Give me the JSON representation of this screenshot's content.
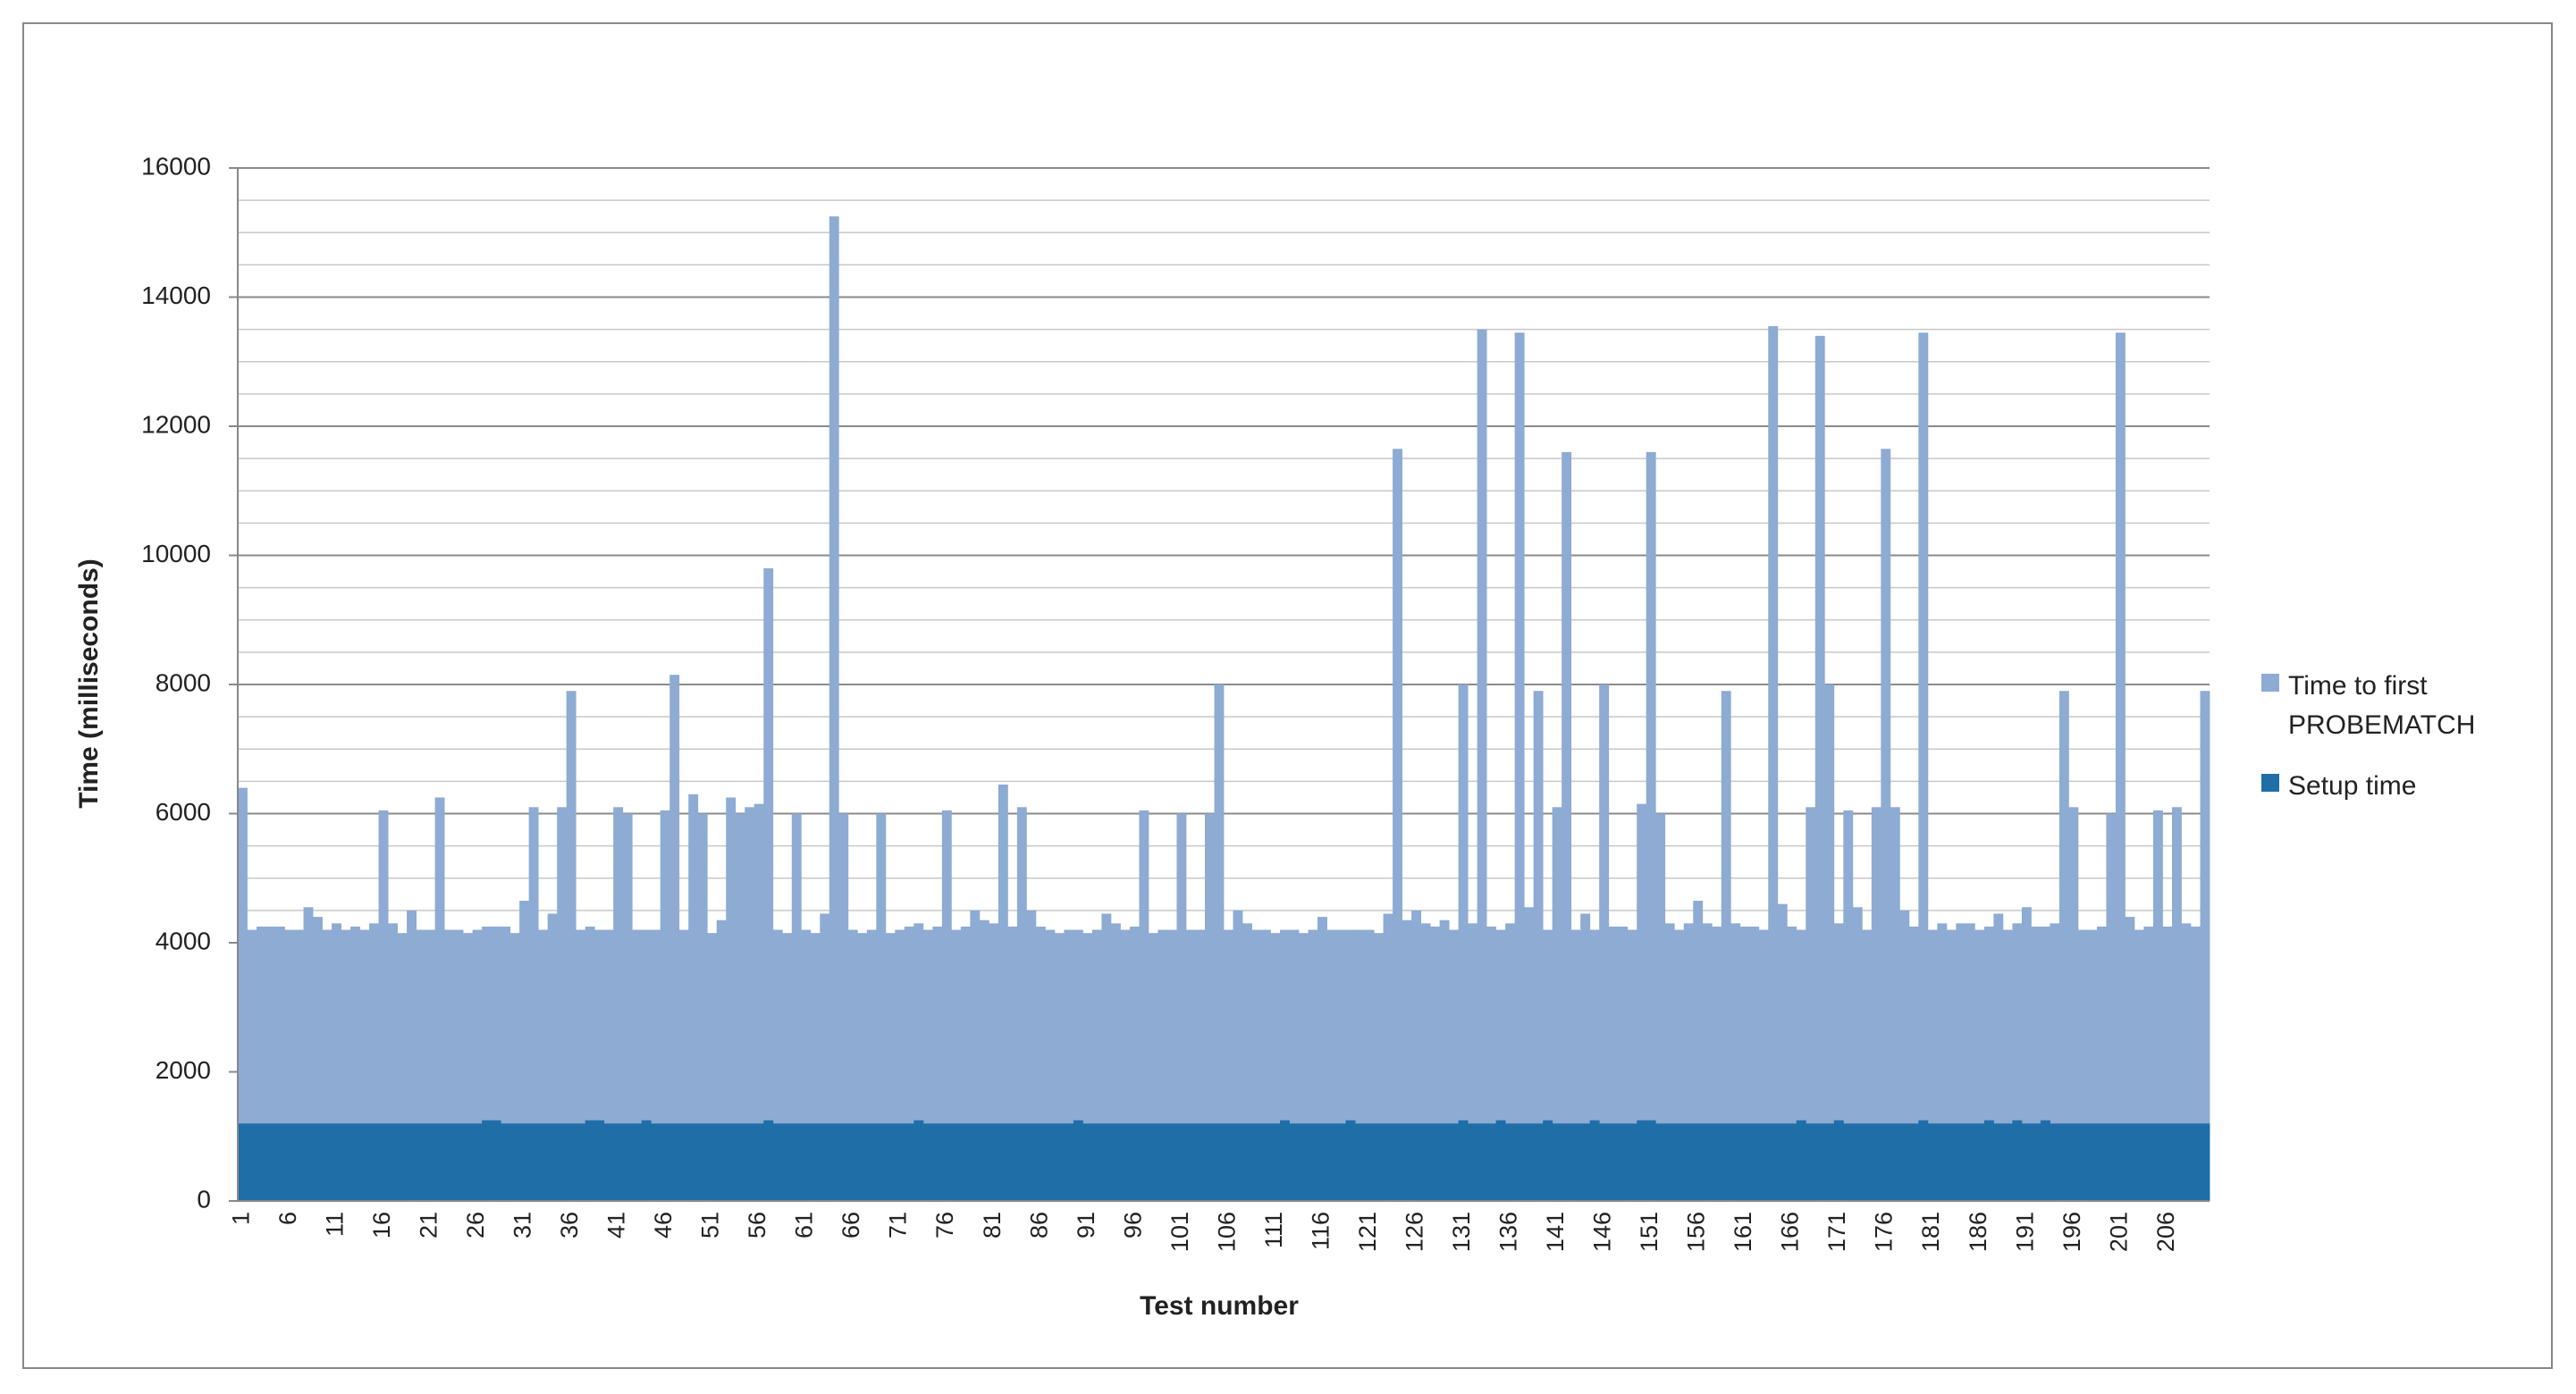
{
  "chart_data": {
    "type": "bar",
    "x_label": "Test number",
    "y_label": "Time (milliseconds)",
    "categories": [
      1,
      null,
      null,
      null,
      null,
      6,
      null,
      null,
      null,
      null,
      11,
      null,
      null,
      null,
      null,
      16,
      null,
      null,
      null,
      null,
      21,
      null,
      null,
      null,
      null,
      26,
      null,
      null,
      null,
      null,
      31,
      null,
      null,
      null,
      null,
      36,
      null,
      null,
      null,
      null,
      41,
      null,
      null,
      null,
      null,
      46,
      null,
      null,
      null,
      null,
      51,
      null,
      null,
      null,
      null,
      56,
      null,
      null,
      null,
      null,
      61,
      null,
      null,
      null,
      null,
      66,
      null,
      null,
      null,
      null,
      71,
      null,
      null,
      null,
      null,
      76,
      null,
      null,
      null,
      null,
      81,
      null,
      null,
      null,
      null,
      86,
      null,
      null,
      null,
      null,
      91,
      null,
      null,
      null,
      null,
      96,
      null,
      null,
      null,
      null,
      101,
      null,
      null,
      null,
      null,
      106,
      null,
      null,
      null,
      null,
      111,
      null,
      null,
      null,
      null,
      116,
      null,
      null,
      null,
      null,
      121,
      null,
      null,
      null,
      null,
      126,
      null,
      null,
      null,
      null,
      131,
      null,
      null,
      null,
      null,
      136,
      null,
      null,
      null,
      null,
      141,
      null,
      null,
      null,
      null,
      146,
      null,
      null,
      null,
      null,
      151,
      null,
      null,
      null,
      null,
      156,
      null,
      null,
      null,
      null,
      161,
      null,
      null,
      null,
      null,
      166,
      null,
      null,
      null,
      null,
      171,
      null,
      null,
      null,
      null,
      176,
      null,
      null,
      null,
      null,
      181,
      null,
      null,
      null,
      null,
      186,
      null,
      null,
      null,
      null,
      191,
      null,
      null,
      null,
      null,
      196,
      null,
      null,
      null,
      null,
      201,
      null,
      null,
      null,
      null,
      206,
      null,
      null,
      null,
      null
    ],
    "series": [
      {
        "name": "Time to first PROBEMATCH",
        "color": "#8dabd3",
        "values": [
          6400,
          4200,
          4250,
          4250,
          4250,
          4200,
          4200,
          4550,
          4400,
          4200,
          4300,
          4200,
          4250,
          4200,
          4300,
          6050,
          4300,
          4150,
          4500,
          4200,
          4200,
          6250,
          4200,
          4200,
          4150,
          4200,
          4250,
          4250,
          4250,
          4150,
          4650,
          6100,
          4200,
          4450,
          6100,
          7900,
          4200,
          4250,
          4200,
          4200,
          6100,
          6000,
          4200,
          4200,
          4200,
          6050,
          8150,
          4200,
          6300,
          6000,
          4150,
          4350,
          6250,
          6000,
          6100,
          6150,
          9800,
          4200,
          4150,
          6000,
          4200,
          4150,
          4450,
          15250,
          6000,
          4200,
          4150,
          4200,
          6000,
          4150,
          4200,
          4250,
          4300,
          4200,
          4250,
          6050,
          4200,
          4250,
          4500,
          4350,
          4300,
          6450,
          4250,
          6100,
          4500,
          4250,
          4200,
          4150,
          4200,
          4200,
          4150,
          4200,
          4450,
          4300,
          4200,
          4250,
          6050,
          4150,
          4200,
          4200,
          6000,
          4200,
          4200,
          6000,
          8000,
          4200,
          4500,
          4300,
          4200,
          4200,
          4150,
          4200,
          4200,
          4150,
          4200,
          4400,
          4200,
          4200,
          4200,
          4200,
          4200,
          4150,
          4450,
          11650,
          4350,
          4500,
          4300,
          4250,
          4350,
          4200,
          8000,
          4300,
          13500,
          4250,
          4200,
          4300,
          13450,
          4550,
          7900,
          4200,
          6100,
          11600,
          4200,
          4450,
          4200,
          8000,
          4250,
          4250,
          4200,
          6150,
          11600,
          6000,
          4300,
          4200,
          4300,
          4650,
          4300,
          4250,
          7900,
          4300,
          4250,
          4250,
          4200,
          13550,
          4600,
          4250,
          4200,
          6100,
          13400,
          8000,
          4300,
          6050,
          4550,
          4200,
          6100,
          11650,
          6100,
          4500,
          4250,
          13450,
          4200,
          4300,
          4200,
          4300,
          4300,
          4200,
          4250,
          4450,
          4200,
          4300,
          4550,
          4250,
          4250,
          4300,
          7900,
          6100,
          4200,
          4200,
          4250,
          6000,
          13450,
          4400,
          4200,
          4250,
          6050,
          4250,
          6100,
          4300,
          4250,
          7900
        ]
      },
      {
        "name": "Setup time",
        "color": "#1f6ea8",
        "values": [
          1200,
          1200,
          1200,
          1200,
          1200,
          1200,
          1200,
          1200,
          1200,
          1200,
          1200,
          1200,
          1200,
          1200,
          1200,
          1200,
          1200,
          1200,
          1200,
          1200,
          1200,
          1200,
          1200,
          1200,
          1200,
          1200,
          1250,
          1250,
          1200,
          1200,
          1200,
          1200,
          1200,
          1200,
          1200,
          1200,
          1200,
          1250,
          1250,
          1200,
          1200,
          1200,
          1200,
          1250,
          1200,
          1200,
          1200,
          1200,
          1200,
          1200,
          1200,
          1200,
          1200,
          1200,
          1200,
          1200,
          1250,
          1200,
          1200,
          1200,
          1200,
          1200,
          1200,
          1200,
          1200,
          1200,
          1200,
          1200,
          1200,
          1200,
          1200,
          1200,
          1250,
          1200,
          1200,
          1200,
          1200,
          1200,
          1200,
          1200,
          1200,
          1200,
          1200,
          1200,
          1200,
          1200,
          1200,
          1200,
          1200,
          1250,
          1200,
          1200,
          1200,
          1200,
          1200,
          1200,
          1200,
          1200,
          1200,
          1200,
          1200,
          1200,
          1200,
          1200,
          1200,
          1200,
          1200,
          1200,
          1200,
          1200,
          1200,
          1250,
          1200,
          1200,
          1200,
          1200,
          1200,
          1200,
          1250,
          1200,
          1200,
          1200,
          1200,
          1200,
          1200,
          1200,
          1200,
          1200,
          1200,
          1200,
          1250,
          1200,
          1200,
          1200,
          1250,
          1200,
          1200,
          1200,
          1200,
          1250,
          1200,
          1200,
          1200,
          1200,
          1250,
          1200,
          1200,
          1200,
          1200,
          1250,
          1250,
          1200,
          1200,
          1200,
          1200,
          1200,
          1200,
          1200,
          1200,
          1200,
          1200,
          1200,
          1200,
          1200,
          1200,
          1200,
          1250,
          1200,
          1200,
          1200,
          1250,
          1200,
          1200,
          1200,
          1200,
          1200,
          1200,
          1200,
          1200,
          1250,
          1200,
          1200,
          1200,
          1200,
          1200,
          1200,
          1250,
          1200,
          1200,
          1250,
          1200,
          1200,
          1250,
          1200,
          1200,
          1200,
          1200,
          1200,
          1200,
          1200,
          1200,
          1200,
          1200,
          1200,
          1200,
          1200,
          1200,
          1200,
          1200,
          1200
        ]
      }
    ],
    "ylim": [
      0,
      16000
    ],
    "yticks": [
      0,
      2000,
      4000,
      6000,
      8000,
      10000,
      12000,
      14000,
      16000
    ],
    "grid": true,
    "minor_grid": true,
    "legend": "right"
  }
}
